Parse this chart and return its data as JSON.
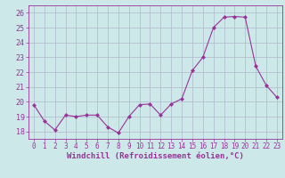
{
  "x": [
    0,
    1,
    2,
    3,
    4,
    5,
    6,
    7,
    8,
    9,
    10,
    11,
    12,
    13,
    14,
    15,
    16,
    17,
    18,
    19,
    20,
    21,
    22,
    23
  ],
  "y": [
    19.8,
    18.7,
    18.1,
    19.1,
    19.0,
    19.1,
    19.1,
    18.3,
    17.9,
    19.0,
    19.8,
    19.85,
    19.1,
    19.85,
    20.2,
    22.1,
    23.0,
    25.0,
    25.7,
    25.75,
    25.7,
    22.4,
    21.1,
    20.3
  ],
  "line_color": "#993399",
  "marker": "D",
  "marker_size": 2,
  "bg_color": "#cce8e8",
  "grid_color": "#b0b8cc",
  "xlabel": "Windchill (Refroidissement éolien,°C)",
  "xlabel_color": "#993399",
  "ylim": [
    17.5,
    26.5
  ],
  "xlim": [
    -0.5,
    23.5
  ],
  "yticks": [
    18,
    19,
    20,
    21,
    22,
    23,
    24,
    25,
    26
  ],
  "xticks": [
    0,
    1,
    2,
    3,
    4,
    5,
    6,
    7,
    8,
    9,
    10,
    11,
    12,
    13,
    14,
    15,
    16,
    17,
    18,
    19,
    20,
    21,
    22,
    23
  ],
  "tick_color": "#993399",
  "tick_fontsize": 5.5,
  "xlabel_fontsize": 6.5,
  "ytick_fontsize": 6.0
}
